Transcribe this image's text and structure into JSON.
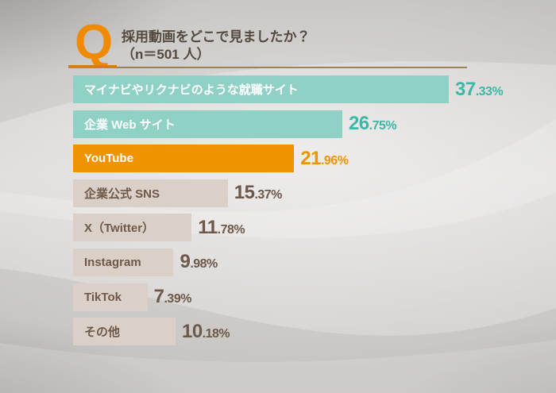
{
  "header": {
    "q_mark": "Q",
    "title_line1": "採用動画をどこで見ましたか？",
    "title_line2": "（n＝501 人）"
  },
  "chart_data": {
    "type": "bar",
    "orientation": "horizontal",
    "title": "採用動画をどこで見ましたか？",
    "sample_size_label": "（n＝501 人）",
    "categories": [
      "マイナビやリクナビのような就職サイト",
      "企業 Web サイト",
      "YouTube",
      "企業公式 SNS",
      "X（Twitter）",
      "Instagram",
      "TikTok",
      "その他"
    ],
    "values": [
      37.33,
      26.75,
      21.96,
      15.37,
      11.78,
      9.98,
      7.39,
      10.18
    ],
    "value_labels": [
      "37.33%",
      "26.75%",
      "21.96%",
      "15.37%",
      "11.78%",
      "9.98%",
      "7.39%",
      "10.18%"
    ],
    "unit": "%",
    "xlim": [
      0,
      40
    ],
    "grid": false,
    "legend": false,
    "bar_themes": [
      "teal",
      "teal",
      "orange",
      "neutral",
      "neutral",
      "neutral",
      "neutral",
      "neutral"
    ]
  },
  "colors": {
    "teal_bar": "#8FD1C4",
    "orange_bar": "#F09300",
    "neutral_bar": "#DBD0C8",
    "teal_pct": "#3CB8A6",
    "orange_pct": "#EF9300",
    "neutral_text": "#6E5849",
    "bar_label_light": "#FFFFFF",
    "title_text": "#54493F",
    "q_orange": "#F08A00",
    "rule_orange": "#D47E15",
    "rule_line": "#8E7340"
  }
}
